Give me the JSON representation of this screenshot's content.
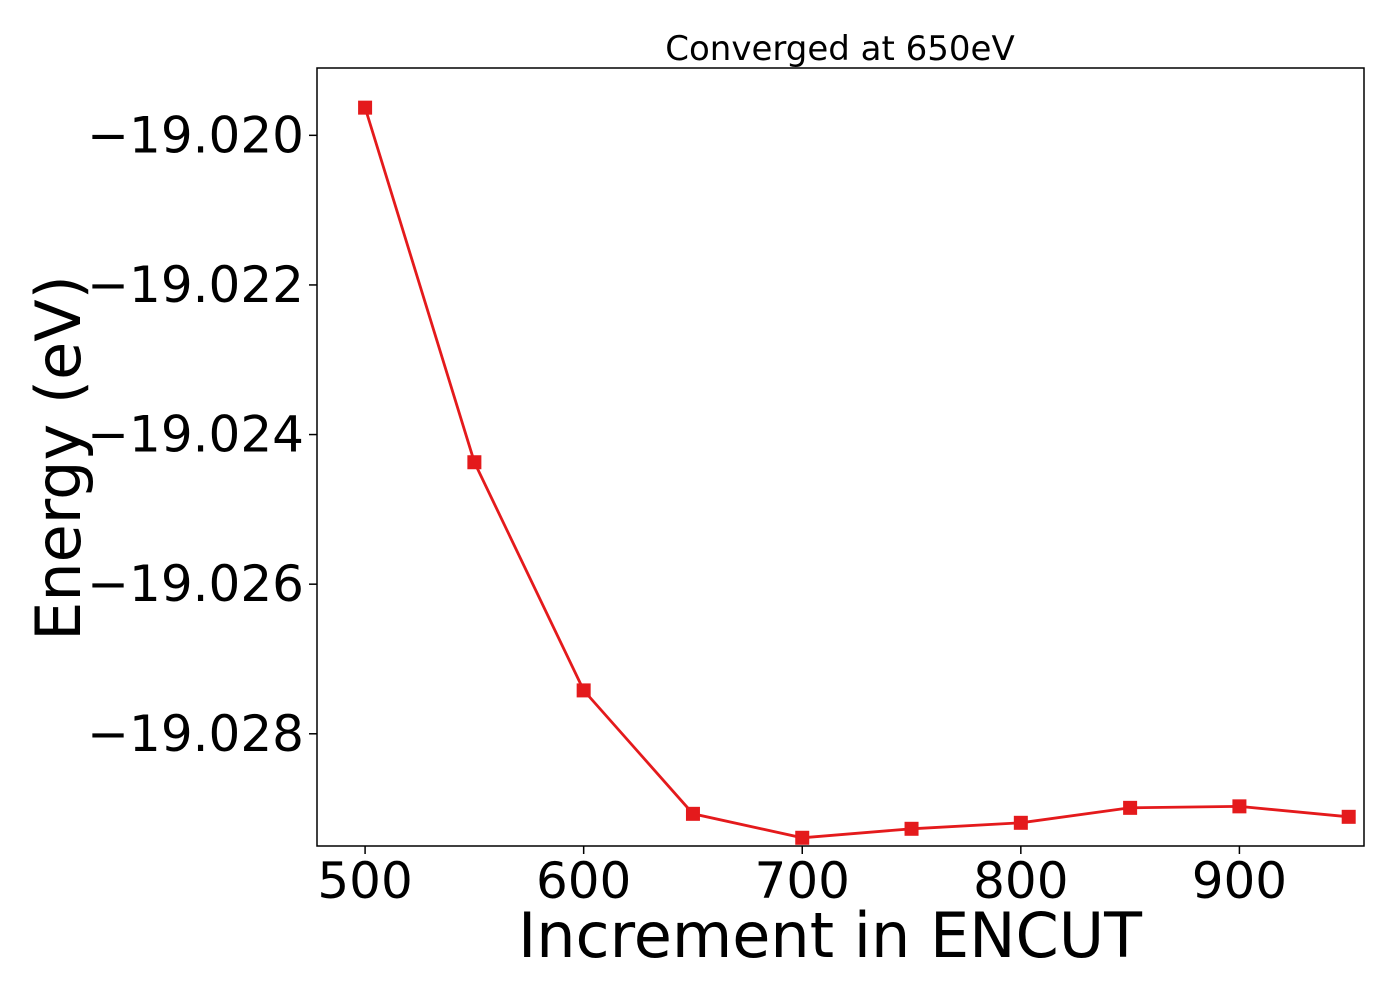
{
  "chart_data": {
    "type": "line",
    "title": "Converged at 650eV",
    "xlabel": "Increment in ENCUT",
    "ylabel": "Energy (eV)",
    "xlim": [
      478,
      957
    ],
    "ylim": [
      -19.0295,
      -19.0191
    ],
    "x_ticks": [
      500,
      600,
      700,
      800,
      900
    ],
    "x_tick_labels": [
      "500",
      "600",
      "700",
      "800",
      "900"
    ],
    "y_ticks": [
      -19.02,
      -19.022,
      -19.024,
      -19.026,
      -19.028
    ],
    "y_tick_labels": [
      "−19.020",
      "−19.022",
      "−19.024",
      "−19.026",
      "−19.028"
    ],
    "grid": false,
    "series": [
      {
        "color": "#e41a1c",
        "marker": "square",
        "x": [
          500,
          550,
          600,
          650,
          700,
          750,
          800,
          850,
          900,
          950
        ],
        "y": [
          -19.01963,
          -19.02437,
          -19.02742,
          -19.02907,
          -19.02939,
          -19.02927,
          -19.02919,
          -19.02899,
          -19.02897,
          -19.02911
        ]
      }
    ]
  }
}
